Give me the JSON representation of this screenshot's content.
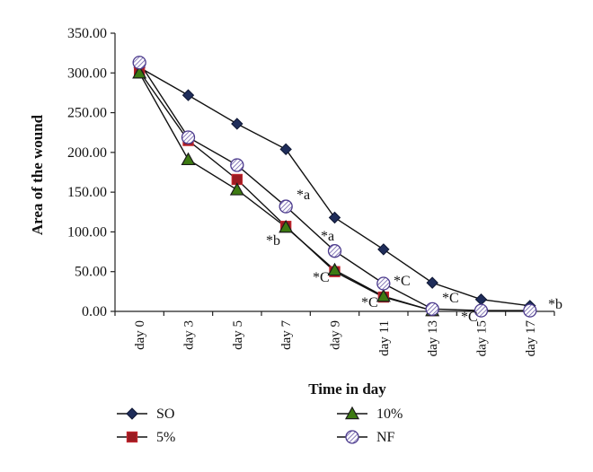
{
  "chart_data": {
    "type": "line",
    "xlabel": "Time in day",
    "ylabel": "Area of the wound",
    "categories": [
      "day 0",
      "day 3",
      "day 5",
      "day 7",
      "day 9",
      "day 11",
      "day 13",
      "day 15",
      "day 17"
    ],
    "ylim": [
      0,
      350
    ],
    "y_ticks": [
      "0.00",
      "50.00",
      "100.00",
      "150.00",
      "200.00",
      "250.00",
      "300.00",
      "350.00"
    ],
    "grid": false,
    "legend_position": "bottom",
    "series": [
      {
        "name": "SO",
        "marker": "diamond",
        "color": "#1f2d5a",
        "fill": "#1f2d5a",
        "values": [
          307,
          272,
          236,
          204,
          118,
          78,
          36,
          15,
          7
        ]
      },
      {
        "name": "5%",
        "marker": "square",
        "color": "#c0262d",
        "fill": "#9b1b22",
        "values": [
          302,
          215,
          166,
          107,
          50,
          18,
          1,
          null,
          null
        ]
      },
      {
        "name": "10%",
        "marker": "triangle",
        "color": "#1a1a1a",
        "fill": "#3d7a12",
        "values": [
          300,
          191,
          153,
          106,
          52,
          19,
          1,
          null,
          null
        ]
      },
      {
        "name": "NF",
        "marker": "hatched-circle",
        "color": "#4b3a8c",
        "fill": "#ffffff",
        "values": [
          313,
          219,
          184,
          132,
          76,
          35,
          3,
          1,
          1
        ]
      }
    ],
    "annotations": [
      "*a",
      "*b",
      "*a",
      "*C",
      "*C",
      "*C",
      "*C",
      "*C",
      "*b"
    ]
  }
}
